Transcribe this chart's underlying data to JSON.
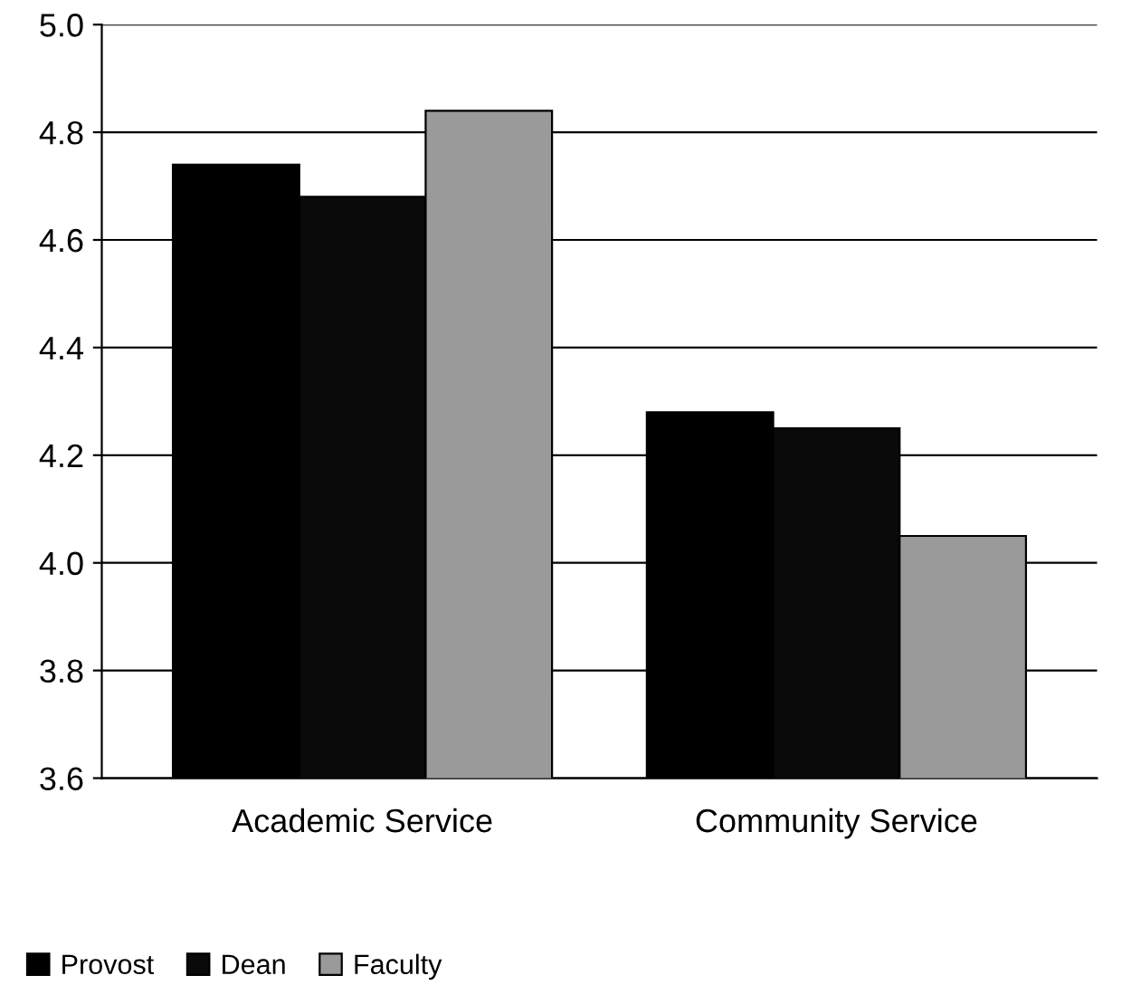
{
  "chart_data": {
    "type": "bar",
    "categories": [
      "Academic Service",
      "Community Service"
    ],
    "series": [
      {
        "name": "Provost",
        "color": "#000000",
        "values": [
          4.74,
          4.28
        ]
      },
      {
        "name": "Dean",
        "color": "#0a0a0a",
        "values": [
          4.68,
          4.25
        ]
      },
      {
        "name": "Faculty",
        "color": "#9a9a9a",
        "values": [
          4.84,
          4.05
        ]
      }
    ],
    "ylim": [
      3.6,
      5.0
    ],
    "yticks": [
      {
        "value": 3.6,
        "label": "3.6"
      },
      {
        "value": 3.8,
        "label": "3.8"
      },
      {
        "value": 4.0,
        "label": "4.0"
      },
      {
        "value": 4.2,
        "label": "4.2"
      },
      {
        "value": 4.4,
        "label": "4.4"
      },
      {
        "value": 4.6,
        "label": "4.6"
      },
      {
        "value": 4.8,
        "label": "4.8"
      },
      {
        "value": 5.0,
        "label": "5.0"
      }
    ],
    "grid": "y",
    "legend": "bottom"
  }
}
